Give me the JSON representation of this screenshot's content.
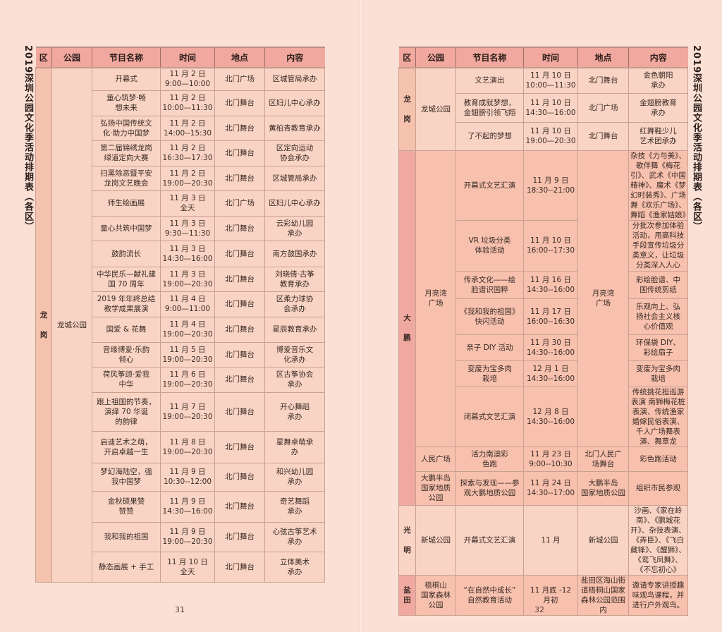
{
  "title": "2019深圳公园文化季活动排期表（各区）",
  "headers": [
    "区",
    "公园",
    "节目名称",
    "时间",
    "地点",
    "内容"
  ],
  "colors": {
    "header": "#f1a89e",
    "longgang_body": "#f9d4c4",
    "longgang_district": "#f5c2ae",
    "dapeng_body": "#f7c1ae",
    "dapeng_district": "#f0a9a0",
    "guangming_body": "#f9d4c4",
    "yantian_district": "#f0a9a0",
    "yantian_body": "#f7c1ae"
  },
  "pages": [
    {
      "page_number": "31",
      "groups": [
        {
          "district": "龙\n\n岗",
          "key": "longgang",
          "parks": [
            {
              "park": "龙城公园",
              "place_merged": false,
              "rows": [
                {
                  "name": "开幕式",
                  "time": "11 月 2 日\n9:00—10:00",
                  "place": "北门广场",
                  "content": "区城管局承办"
                },
                {
                  "name": "童心筑梦·畅\n想未来",
                  "time": "11 月 2 日\n10:00—11:30",
                  "place": "北门舞台",
                  "content": "区妇儿中心承办"
                },
                {
                  "name": "弘扬中国传统文\n化·助力中国梦",
                  "time": "11 月 2 日\n14:00--15:30",
                  "place": "北门舞台",
                  "content": "黄柏青教育承办"
                },
                {
                  "name": "第二届锦绣龙岗\n绿道定向大赛",
                  "time": "11 月 2 日\n16:30—17:30",
                  "place": "北门舞台",
                  "content": "区定向运动\n协会承办"
                },
                {
                  "name": "扫黑除恶暨平安\n龙岗文艺晚会",
                  "time": "11 月 2 日\n19:00—20:30",
                  "place": "北门舞台",
                  "content": "区城管局承办"
                },
                {
                  "name": "师生绘画展",
                  "time": "11 月 3 日\n全天",
                  "place": "北门广场",
                  "content": "区妇儿中心承办"
                },
                {
                  "name": "童心共筑中国梦",
                  "time": "11 月 3 日\n9:30—11:30",
                  "place": "北门舞台",
                  "content": "云彩幼儿园\n承办"
                },
                {
                  "name": "鼓韵流长",
                  "time": "11 月 3 日\n14:30—16:00",
                  "place": "北门舞台",
                  "content": "南方鼓国承办"
                },
                {
                  "name": "中华民乐—献礼建\n国 70 周年",
                  "time": "11 月 3 日\n19:00—20:30",
                  "place": "北门舞台",
                  "content": "刘晓倩·古筝\n教育承办"
                },
                {
                  "name": "2019 年年终总结\n教学成果展演",
                  "time": "11 月 4 日\n9:00—11:00",
                  "place": "北门舞台",
                  "content": "区柔力球协\n会承办"
                },
                {
                  "name": "国爱 & 花舞",
                  "time": "11 月 4 日\n19:00—20:30",
                  "place": "北门舞台",
                  "content": "星辰教育承办"
                },
                {
                  "name": "音缘博爱·乐韵\n倾心",
                  "time": "11 月 5 日\n19:00—20:30",
                  "place": "北门舞台",
                  "content": "博爱音乐文\n化承办"
                },
                {
                  "name": "荷风筝颂·爱我\n中华",
                  "time": "11 月 6 日\n19:00—20:30",
                  "place": "北门舞台",
                  "content": "区古筝协会\n承办"
                },
                {
                  "name": "跟上祖国的节奏，\n演绎 70 华诞\n的韵律",
                  "time": "11 月 7 日\n19:00—20:30",
                  "place": "北门舞台",
                  "content": "开心舞蹈\n承办"
                },
                {
                  "name": "启迪艺术之萌，\n开启卓越一生",
                  "time": "11 月 8 日\n19:00—20:30",
                  "place": "北门舞台",
                  "content": "星舞卓萌承\n办"
                },
                {
                  "name": "梦幻海陆空，强\n我中国梦",
                  "time": "11 月 9 日\n10:30--12:00",
                  "place": "北门舞台",
                  "content": "和兴幼儿园\n承办"
                },
                {
                  "name": "金秋硕果赞\n赞赞",
                  "time": "11 月 9 日\n14:30—16:00",
                  "place": "北门舞台",
                  "content": "奇艺舞蹈\n承办"
                },
                {
                  "name": "我和我的祖国",
                  "time": "11 月 9 日\n19:00—20:30",
                  "place": "北门舞台",
                  "content": "心弦古筝艺术\n承办"
                },
                {
                  "name": "静态画展 + 手工",
                  "time": "11 月 10 日\n全天",
                  "place": "北门舞台",
                  "content": "立体美术\n承办"
                }
              ]
            }
          ]
        }
      ]
    },
    {
      "page_number": "32",
      "groups": [
        {
          "district": "龙\n\n岗",
          "key": "longgang",
          "parks": [
            {
              "park": "龙城公园",
              "place_merged": false,
              "rows": [
                {
                  "name": "文艺演出",
                  "time": "11 月 10 日\n10:00—11:30",
                  "place": "北门舞台",
                  "content": "金色朝阳\n承办"
                },
                {
                  "name": "教育成就梦想，\n金翅膀引领飞翔",
                  "time": "11 月 10 日\n14:30—16:00",
                  "place": "北门广场",
                  "content": "金翅膀教育\n承办"
                },
                {
                  "name": "了不起的梦想",
                  "time": "11 月 10 日\n19:00—20:30",
                  "place": "北门舞台",
                  "content": "红舞鞋少儿\n艺术团承办"
                }
              ]
            }
          ]
        },
        {
          "district": "大\n\n鹏",
          "key": "dapeng",
          "parks": [
            {
              "park": "月亮湾\n广场",
              "place_merged": true,
              "rows": [
                {
                  "name": "开幕式文艺汇演",
                  "time": "11 月 9 日\n18:30--21:00",
                  "place": "月亮湾\n广场",
                  "content": "杂技《力与美》、歌伴舞《梅花引》、武术《中国精神》、魔术《梦幻时装秀》、广场舞《欢乐广场》、舞蹈《渔家姑娘》"
                },
                {
                  "name": "VR 垃圾分类\n体验活动",
                  "time": "11 月 10 日\n16:00--17:30",
                  "place": "月亮湾\n广场",
                  "content": "分批次参加体验活动，用高科技手段宣传垃圾分类意义，让垃圾分类深入人心"
                },
                {
                  "name": "传承文化——绘\n脸谱识国粹",
                  "time": "11 月 16 日\n14:30--16:00",
                  "place": "月亮湾\n广场",
                  "content": "彩绘脸谱、中\n国传统剪纸"
                },
                {
                  "name": "《我和我的祖国》\n快闪活动",
                  "time": "11 月 17 日\n16:00--16:30",
                  "place": "月亮湾\n广场",
                  "content": "乐观向上、弘\n扬社会主义核\n心价值观"
                },
                {
                  "name": "亲子 DIY 活动",
                  "time": "11 月 30 日\n14:30--16:00",
                  "place": "月亮湾\n广场",
                  "content": "环保袋 DIY、\n彩绘扇子"
                },
                {
                  "name": "变废为宝多肉\n栽培",
                  "time": "12 月 1 日\n14:30--16:00",
                  "place": "月亮湾\n广场",
                  "content": "变废为宝多肉\n栽培"
                },
                {
                  "name": "闭幕式文艺汇演",
                  "time": "12 月 8 日\n14:30--16:00",
                  "place": "月亮湾\n广场",
                  "content": "传统挑花担巡游表演 南狮梅花桩表演、传统渔家婚嫁民俗表演、千人广场舞表演、舞草龙"
                }
              ]
            },
            {
              "park": "人民广场",
              "place_merged": false,
              "rows": [
                {
                  "name": "活力南澳彩\n色跑",
                  "time": "11 月 23 日\n9:00--10:30",
                  "place": "北门人民广\n场舞台",
                  "content": "彩色跑活动"
                }
              ]
            },
            {
              "park": "大鹏半岛\n国家地质\n公园",
              "place_merged": false,
              "rows": [
                {
                  "name": "探索与发现——参\n观大鹏地质公园",
                  "time": "11 月 24 日\n14:30--17:00",
                  "place": "大鹏半岛\n国家地质公园",
                  "content": "组织市民参观"
                }
              ]
            }
          ]
        },
        {
          "district": "光\n\n明",
          "key": "guangming",
          "parks": [
            {
              "park": "新城公园",
              "place_merged": false,
              "rows": [
                {
                  "name": "开幕式文艺汇演",
                  "time": "11 月",
                  "place": "新城公园",
                  "content": "沙画、《家在岭南》、《鹏城花开》、杂技表演、《弄臣》、《飞白藏锋》、《醒狮》、《鸾飞凤舞》、《不忘初心》"
                }
              ]
            }
          ]
        },
        {
          "district": "盐\n田",
          "key": "yantian",
          "parks": [
            {
              "park": "梧桐山\n国家森林\n公园",
              "place_merged": false,
              "rows": [
                {
                  "name": "“在自然中成长”\n自然教育活动",
                  "time": "11 月底 -12 月初",
                  "place": "盐田区海山街道梧桐山国家森林公园范围内",
                  "content": "邀请专家讲授趣味观鸟课程，并进行户外观鸟。"
                }
              ]
            }
          ]
        }
      ]
    }
  ]
}
